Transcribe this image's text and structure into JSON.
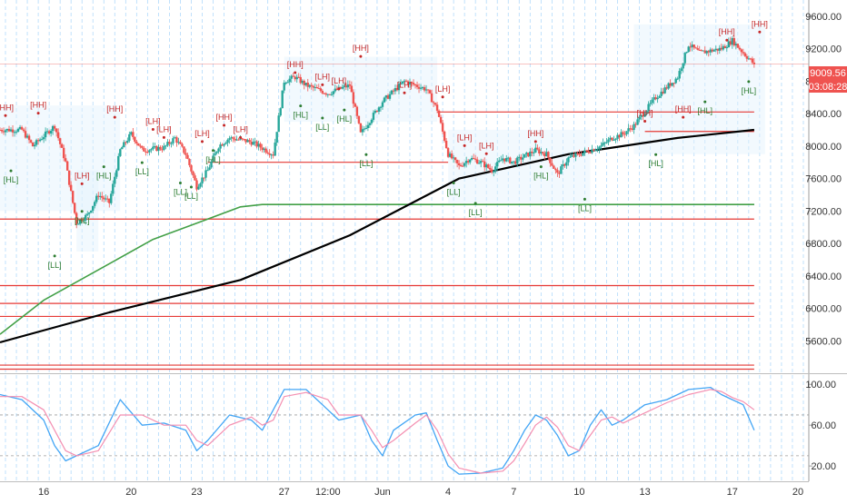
{
  "chart_data": [
    {
      "type": "candlestick",
      "title": "",
      "ylim": [
        5200,
        9800
      ],
      "price_ticks": [
        "9600.00",
        "9200.00",
        "8800.00",
        "8400.00",
        "8000.00",
        "7600.00",
        "7200.00",
        "6800.00",
        "6400.00",
        "6000.00",
        "5600.00"
      ],
      "price_tick_values": [
        9600,
        9200,
        8800,
        8400,
        8000,
        7600,
        7200,
        6800,
        6400,
        6000,
        5600
      ],
      "x_ticks": [
        "16",
        "20",
        "23",
        "27",
        "12:00",
        "Jun",
        "4",
        "7",
        "10",
        "13",
        "17",
        "20"
      ],
      "x_tick_pos": [
        2,
        10,
        16,
        24,
        28,
        33,
        39,
        45,
        51,
        57,
        65,
        71
      ],
      "x_range": [
        -2,
        72
      ],
      "last_price_label": "9009.56",
      "countdown_label": "03:08:28",
      "colors": {
        "up": "#26a69a",
        "down": "#ef5350",
        "price_tag": "#ef5350",
        "ma_black": "#000000",
        "ma_green": "#43a047",
        "support": "#e53935",
        "hline_blue": "#3f51b5",
        "grid_vline": "#90caf9",
        "shade": "#e3f2fd"
      },
      "ohlc_anchors": [
        [
          0,
          8200
        ],
        [
          1,
          8000
        ],
        [
          3,
          8250
        ],
        [
          4,
          7800
        ],
        [
          5,
          7050
        ],
        [
          6,
          7150
        ],
        [
          7,
          7400
        ],
        [
          8,
          7300
        ],
        [
          9,
          7950
        ],
        [
          10,
          8150
        ],
        [
          11,
          7950
        ],
        [
          13,
          7980
        ],
        [
          14,
          8100
        ],
        [
          15,
          7900
        ],
        [
          16,
          7500
        ],
        [
          17,
          7700
        ],
        [
          18,
          8000
        ],
        [
          19,
          8100
        ],
        [
          21,
          8050
        ],
        [
          23,
          7900
        ],
        [
          24,
          8800
        ],
        [
          25,
          8850
        ],
        [
          26,
          8750
        ],
        [
          27,
          8700
        ],
        [
          28,
          8650
        ],
        [
          30,
          8750
        ],
        [
          31,
          8150
        ],
        [
          32,
          8350
        ],
        [
          33,
          8550
        ],
        [
          35,
          8800
        ],
        [
          36,
          8750
        ],
        [
          37,
          8700
        ],
        [
          38,
          8450
        ],
        [
          39,
          7900
        ],
        [
          40,
          7750
        ],
        [
          41,
          7850
        ],
        [
          42,
          7800
        ],
        [
          43,
          7700
        ],
        [
          44,
          7850
        ],
        [
          45,
          7800
        ],
        [
          47,
          7950
        ],
        [
          48,
          7900
        ],
        [
          49,
          7650
        ],
        [
          50,
          7850
        ],
        [
          51,
          7900
        ],
        [
          53,
          8000
        ],
        [
          54,
          8100
        ],
        [
          55,
          8150
        ],
        [
          56,
          8250
        ],
        [
          58,
          8600
        ],
        [
          60,
          8850
        ],
        [
          61,
          9250
        ],
        [
          62,
          9150
        ],
        [
          64,
          9200
        ],
        [
          65,
          9300
        ],
        [
          66,
          9150
        ],
        [
          67,
          9009.56
        ]
      ],
      "series": [
        {
          "type": "line",
          "values": [
            [
              -2,
              5580
            ],
            [
              8,
              5950
            ],
            [
              20,
              6350
            ],
            [
              30,
              6900
            ],
            [
              40,
              7600
            ],
            [
              50,
              7900
            ],
            [
              60,
              8100
            ],
            [
              67,
              8200
            ]
          ]
        },
        {
          "type": "line",
          "values": [
            [
              -2,
              5680
            ],
            [
              2,
              6100
            ],
            [
              4,
              6250
            ],
            [
              8,
              6550
            ],
            [
              12,
              6850
            ],
            [
              16,
              7050
            ],
            [
              20,
              7250
            ],
            [
              22,
              7280
            ],
            [
              67,
              7280
            ]
          ]
        }
      ],
      "horizontal_lines": [
        {
          "y": 9009.56,
          "x_from": -2,
          "x_to": 72
        },
        {
          "y": 8420,
          "x_from": 38,
          "x_to": 67
        },
        {
          "y": 8180,
          "x_from": 57,
          "x_to": 67
        },
        {
          "y": 7800,
          "x_from": 17,
          "x_to": 39
        },
        {
          "y": 7280,
          "x_from": 22,
          "x_to": 67
        },
        {
          "y": 7100,
          "x_from": -2,
          "x_to": 67
        },
        {
          "y": 6280,
          "x_from": -2,
          "x_to": 67
        },
        {
          "y": 6060,
          "x_from": -2,
          "x_to": 67
        },
        {
          "y": 5900,
          "x_from": -2,
          "x_to": 67
        },
        {
          "y": 5300,
          "x_from": -2,
          "x_to": 67
        },
        {
          "y": 5250,
          "x_from": -2,
          "x_to": 67
        }
      ],
      "pivot_labels": [
        {
          "text": "[HH]",
          "x": -1.5,
          "y": 8420,
          "pos": "above"
        },
        {
          "text": "[HH]",
          "x": 1.5,
          "y": 8450,
          "pos": "above"
        },
        {
          "text": "[HL]",
          "x": -1,
          "y": 7650,
          "pos": "below"
        },
        {
          "text": "[LH]",
          "x": 5.5,
          "y": 7580,
          "pos": "above"
        },
        {
          "text": "[LL]",
          "x": 3,
          "y": 6600,
          "pos": "below"
        },
        {
          "text": "[HL]",
          "x": 5.5,
          "y": 7150,
          "pos": "below"
        },
        {
          "text": "[HH]",
          "x": 8.5,
          "y": 8400,
          "pos": "above"
        },
        {
          "text": "[HL]",
          "x": 7.5,
          "y": 7700,
          "pos": "below"
        },
        {
          "text": "[LH]",
          "x": 12,
          "y": 8250,
          "pos": "above"
        },
        {
          "text": "[LH]",
          "x": 13,
          "y": 8150,
          "pos": "above"
        },
        {
          "text": "[LL]",
          "x": 11,
          "y": 7750,
          "pos": "below"
        },
        {
          "text": "[LL]",
          "x": 14.5,
          "y": 7500,
          "pos": "below"
        },
        {
          "text": "[LL]",
          "x": 15.5,
          "y": 7450,
          "pos": "below"
        },
        {
          "text": "[LH]",
          "x": 16.5,
          "y": 8100,
          "pos": "above"
        },
        {
          "text": "[HH]",
          "x": 18.5,
          "y": 8300,
          "pos": "above"
        },
        {
          "text": "[HL]",
          "x": 17.5,
          "y": 7900,
          "pos": "below"
        },
        {
          "text": "[LH]",
          "x": 20,
          "y": 8150,
          "pos": "above"
        },
        {
          "text": "[HH]",
          "x": 25,
          "y": 8950,
          "pos": "above"
        },
        {
          "text": "[HL]",
          "x": 25.5,
          "y": 8450,
          "pos": "below"
        },
        {
          "text": "[LH]",
          "x": 27.5,
          "y": 8800,
          "pos": "above"
        },
        {
          "text": "[LL]",
          "x": 27.5,
          "y": 8300,
          "pos": "below"
        },
        {
          "text": "[LH]",
          "x": 29,
          "y": 8750,
          "pos": "above"
        },
        {
          "text": "[HL]",
          "x": 29.5,
          "y": 8400,
          "pos": "below"
        },
        {
          "text": "[HH]",
          "x": 31,
          "y": 9150,
          "pos": "above"
        },
        {
          "text": "[LL]",
          "x": 31.5,
          "y": 7850,
          "pos": "below"
        },
        {
          "text": "[LH]",
          "x": 35,
          "y": 8700,
          "pos": "above"
        },
        {
          "text": "[LH]",
          "x": 38.5,
          "y": 8650,
          "pos": "above"
        },
        {
          "text": "[LH]",
          "x": 40.5,
          "y": 8050,
          "pos": "above"
        },
        {
          "text": "[LL]",
          "x": 39.5,
          "y": 7500,
          "pos": "below"
        },
        {
          "text": "[LL]",
          "x": 41.5,
          "y": 7250,
          "pos": "below"
        },
        {
          "text": "[LH]",
          "x": 42.5,
          "y": 7950,
          "pos": "above"
        },
        {
          "text": "[HH]",
          "x": 47,
          "y": 8100,
          "pos": "above"
        },
        {
          "text": "[HL]",
          "x": 47.5,
          "y": 7700,
          "pos": "below"
        },
        {
          "text": "[LL]",
          "x": 51.5,
          "y": 7300,
          "pos": "below"
        },
        {
          "text": "[HH]",
          "x": 57,
          "y": 8350,
          "pos": "above"
        },
        {
          "text": "[HL]",
          "x": 58,
          "y": 7850,
          "pos": "below"
        },
        {
          "text": "[HH]",
          "x": 60.5,
          "y": 8400,
          "pos": "above"
        },
        {
          "text": "[HL]",
          "x": 62.5,
          "y": 8500,
          "pos": "below"
        },
        {
          "text": "[HH]",
          "x": 64.5,
          "y": 9350,
          "pos": "above"
        },
        {
          "text": "[HL]",
          "x": 66.5,
          "y": 8750,
          "pos": "below"
        },
        {
          "text": "[HH]",
          "x": 67.5,
          "y": 9450,
          "pos": "above"
        }
      ]
    },
    {
      "type": "line",
      "title": "",
      "ylim": [
        5,
        110
      ],
      "y_ticks": [
        "100.00",
        "60.00",
        "20.00"
      ],
      "y_tick_values": [
        100,
        60,
        20
      ],
      "dashed_levels": [
        70,
        30
      ],
      "series": [
        {
          "color": "#42a5f5",
          "values": [
            [
              -2,
              90
            ],
            [
              0,
              85
            ],
            [
              2,
              65
            ],
            [
              3,
              40
            ],
            [
              4,
              25
            ],
            [
              5,
              30
            ],
            [
              7,
              40
            ],
            [
              9,
              85
            ],
            [
              11,
              60
            ],
            [
              13,
              62
            ],
            [
              15,
              55
            ],
            [
              16,
              35
            ],
            [
              17,
              45
            ],
            [
              19,
              70
            ],
            [
              21,
              65
            ],
            [
              22,
              55
            ],
            [
              23,
              75
            ],
            [
              24,
              95
            ],
            [
              26,
              95
            ],
            [
              28,
              75
            ],
            [
              29,
              65
            ],
            [
              31,
              70
            ],
            [
              32,
              45
            ],
            [
              33,
              30
            ],
            [
              34,
              55
            ],
            [
              36,
              70
            ],
            [
              37,
              72
            ],
            [
              38,
              45
            ],
            [
              39,
              20
            ],
            [
              40,
              12
            ],
            [
              42,
              13
            ],
            [
              44,
              18
            ],
            [
              45,
              35
            ],
            [
              46,
              55
            ],
            [
              47,
              70
            ],
            [
              48,
              65
            ],
            [
              49,
              50
            ],
            [
              50,
              30
            ],
            [
              51,
              35
            ],
            [
              52,
              60
            ],
            [
              53,
              75
            ],
            [
              54,
              60
            ],
            [
              55,
              65
            ],
            [
              57,
              80
            ],
            [
              59,
              85
            ],
            [
              61,
              95
            ],
            [
              63,
              97
            ],
            [
              64,
              90
            ],
            [
              65,
              85
            ],
            [
              66,
              80
            ],
            [
              67,
              55
            ]
          ]
        },
        {
          "color": "#f48fb1",
          "values": [
            [
              -2,
              88
            ],
            [
              0,
              88
            ],
            [
              2,
              75
            ],
            [
              3,
              55
            ],
            [
              4,
              35
            ],
            [
              5,
              30
            ],
            [
              7,
              35
            ],
            [
              9,
              70
            ],
            [
              11,
              70
            ],
            [
              13,
              60
            ],
            [
              15,
              60
            ],
            [
              16,
              45
            ],
            [
              17,
              40
            ],
            [
              19,
              60
            ],
            [
              21,
              68
            ],
            [
              22,
              60
            ],
            [
              23,
              65
            ],
            [
              24,
              88
            ],
            [
              26,
              92
            ],
            [
              28,
              85
            ],
            [
              29,
              70
            ],
            [
              31,
              70
            ],
            [
              32,
              55
            ],
            [
              33,
              38
            ],
            [
              34,
              45
            ],
            [
              36,
              62
            ],
            [
              37,
              70
            ],
            [
              38,
              55
            ],
            [
              39,
              32
            ],
            [
              40,
              18
            ],
            [
              42,
              13
            ],
            [
              44,
              15
            ],
            [
              45,
              25
            ],
            [
              46,
              42
            ],
            [
              47,
              60
            ],
            [
              48,
              68
            ],
            [
              49,
              58
            ],
            [
              50,
              40
            ],
            [
              51,
              35
            ],
            [
              52,
              50
            ],
            [
              53,
              65
            ],
            [
              54,
              68
            ],
            [
              55,
              62
            ],
            [
              57,
              72
            ],
            [
              59,
              82
            ],
            [
              61,
              90
            ],
            [
              63,
              95
            ],
            [
              64,
              93
            ],
            [
              65,
              87
            ],
            [
              66,
              83
            ],
            [
              67,
              75
            ]
          ]
        }
      ]
    }
  ]
}
